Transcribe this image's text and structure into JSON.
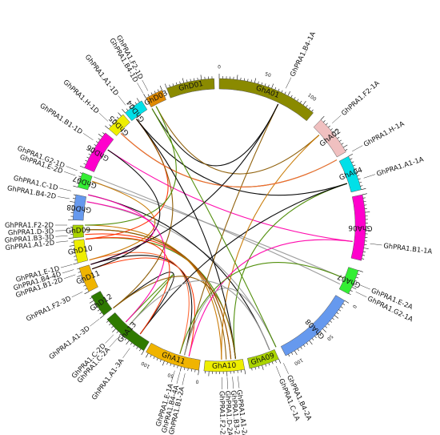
{
  "segments": [
    {
      "label": "GhD01",
      "color": "#8a8a00"
    },
    {
      "label": "GhA01",
      "color": "#8a8a00"
    },
    {
      "label": "GhA02",
      "color": "#f0c0c0"
    },
    {
      "label": "GhA04",
      "color": "#00e0e8"
    },
    {
      "label": "GhA06",
      "color": "#ff00cc"
    },
    {
      "label": "GhA07",
      "color": "#33ee33"
    },
    {
      "label": "GhA08",
      "color": "#6699ee"
    },
    {
      "label": "GhA09",
      "color": "#aad400"
    },
    {
      "label": "GhA10",
      "color": "#eeee00"
    },
    {
      "label": "GhA11",
      "color": "#f0b400"
    },
    {
      "label": "GhA13",
      "color": "#2f7a00"
    },
    {
      "label": "GhD12",
      "color": "#2f7a00"
    },
    {
      "label": "GhD11",
      "color": "#f0b400"
    },
    {
      "label": "GhD10",
      "color": "#eeee00"
    },
    {
      "label": "GhD09",
      "color": "#aad400"
    },
    {
      "label": "GhD08",
      "color": "#6699ee"
    },
    {
      "label": "GhD07",
      "color": "#33ee33"
    },
    {
      "label": "GhD06",
      "color": "#ff00cc"
    },
    {
      "label": "GhD05",
      "color": "#eeee00"
    },
    {
      "label": "GhD04",
      "color": "#00e0e8"
    },
    {
      "label": "GhD03",
      "color": "#e08a00"
    }
  ],
  "tick_values": [
    "0",
    "50",
    "100"
  ],
  "genes": [
    "GhPRA1.B4-1A",
    "GhPRA1.F2-1A",
    "GhPRA1.H-1A",
    "GhPRA1.A1-1A",
    "GhPRA1.B1-1A",
    "GhPRA1.E-2A",
    "GhPRA1.G2-1A",
    "GhPRA1.B4-2A",
    "GhPRA1.C-1A",
    "GhPRA1.A1-2A",
    "GhPRA1.B3-2A",
    "GhPRA1.D-2A",
    "GhPRA1.F2-2A",
    "GhPRA1.B1-2A",
    "GhPRA1.B4-4A",
    "GhPRA1.E-1A",
    "GhPRA1.A1-3A",
    "GhPRA1.C-2A",
    "GhPRA1.C-2D",
    "GhPRA1.A1-3D",
    "GhPRA1.F2-3D",
    "GhPRA1.B1-2D",
    "GhPRA1.B4-4D",
    "GhPRA1.E-1D",
    "GhPRA1.A1-2D",
    "GhPRA1.B3-3D",
    "GhPRA1.D-3D",
    "GhPRA1.F2-2D",
    "GhPRA1.B4-2D",
    "GhPRA1.C-1D",
    "GhPRA1.E-2D",
    "GhPRA1.G2-1D",
    "GhPRA1.B1-1D",
    "GhPRA1.H-1D",
    "GhPRA1.A1-1D",
    "GhPRA1.B4-1D",
    "GhPRA1.F2-1D"
  ],
  "link_colors": [
    "#000000",
    "#8b5a00",
    "#4a8a00",
    "#ff00aa",
    "#ff3300",
    "#999999",
    "#c87800",
    "#ff6633"
  ]
}
